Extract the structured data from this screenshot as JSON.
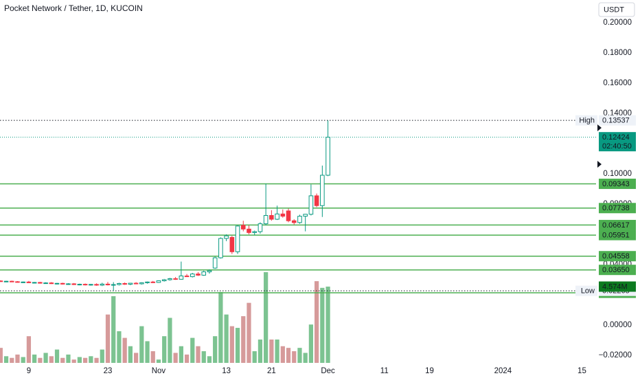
{
  "chart_data": {
    "type": "candlestick",
    "title": "Pocket Network / Tether, 1D, KUCOIN",
    "currency": "USDT",
    "up_color": "#089981",
    "down_color": "#f23645",
    "volume_up_color": "#7cc391",
    "volume_down_color": "#d69a9a",
    "level_color": "#4caf50",
    "grid": false,
    "xlim": [
      -5.1,
      100.5
    ],
    "ylim": [
      -0.025,
      0.215
    ],
    "xticks": [
      {
        "value": 0,
        "label": "9"
      },
      {
        "value": 14,
        "label": "23"
      },
      {
        "value": 23,
        "label": "Nov"
      },
      {
        "value": 35,
        "label": "13"
      },
      {
        "value": 43,
        "label": "21"
      },
      {
        "value": 53,
        "label": "Dec"
      },
      {
        "value": 63,
        "label": "11"
      },
      {
        "value": 71,
        "label": "19"
      },
      {
        "value": 84,
        "label": "2024"
      },
      {
        "value": 98,
        "label": "15"
      }
    ],
    "yticks": [
      {
        "value": 0.2,
        "label": "0.20000"
      },
      {
        "value": 0.18,
        "label": "0.18000"
      },
      {
        "value": 0.16,
        "label": "0.16000"
      },
      {
        "value": 0.14,
        "label": "0.14000"
      },
      {
        "value": 0.1,
        "label": "0.10000"
      },
      {
        "value": 0.08,
        "label": "0.08000"
      },
      {
        "value": 0.04,
        "label": "0.04000"
      },
      {
        "value": 0,
        "label": "0.00000"
      },
      {
        "value": -0.02,
        "label": "−0.02000"
      }
    ],
    "x": [
      -5,
      -4,
      -3,
      -2,
      -1,
      0,
      1,
      2,
      3,
      4,
      5,
      6,
      7,
      8,
      9,
      10,
      11,
      12,
      13,
      14,
      15,
      16,
      17,
      18,
      19,
      20,
      21,
      22,
      23,
      24,
      25,
      26,
      27,
      28,
      29,
      30,
      31,
      32,
      33,
      34,
      35,
      36,
      37,
      38,
      39,
      40,
      41,
      42,
      43,
      44,
      45,
      46,
      47,
      48,
      49,
      50,
      51,
      52,
      53
    ],
    "open": [
      0.0292,
      0.0289,
      0.029,
      0.0287,
      0.0283,
      0.0285,
      0.028,
      0.0282,
      0.0277,
      0.0279,
      0.0274,
      0.0276,
      0.0271,
      0.0273,
      0.0268,
      0.027,
      0.0266,
      0.0269,
      0.0264,
      0.0271,
      0.0266,
      0.0268,
      0.0275,
      0.027,
      0.0277,
      0.0273,
      0.028,
      0.0285,
      0.0282,
      0.0293,
      0.03,
      0.0307,
      0.0303,
      0.0325,
      0.032,
      0.0338,
      0.033,
      0.0352,
      0.0377,
      0.0445,
      0.0573,
      0.058,
      0.0485,
      0.066,
      0.0635,
      0.0612,
      0.0618,
      0.067,
      0.0725,
      0.07,
      0.0735,
      0.0755,
      0.069,
      0.0678,
      0.072,
      0.0733,
      0.0855,
      0.079,
      0.0991
    ],
    "high": [
      0.0296,
      0.0293,
      0.0294,
      0.0291,
      0.0288,
      0.0292,
      0.0285,
      0.0286,
      0.0283,
      0.0284,
      0.0279,
      0.028,
      0.0277,
      0.0278,
      0.0274,
      0.0275,
      0.0272,
      0.0276,
      0.028,
      0.0285,
      0.0284,
      0.028,
      0.0282,
      0.0279,
      0.0284,
      0.0283,
      0.0288,
      0.0292,
      0.0296,
      0.0305,
      0.0312,
      0.0318,
      0.042,
      0.0338,
      0.0345,
      0.035,
      0.036,
      0.0368,
      0.0452,
      0.058,
      0.06,
      0.059,
      0.066,
      0.069,
      0.066,
      0.0625,
      0.068,
      0.0936,
      0.076,
      0.079,
      0.0765,
      0.077,
      0.07,
      0.073,
      0.0735,
      0.093,
      0.087,
      0.1055,
      0.13537
    ],
    "low": [
      0.0286,
      0.0284,
      0.0285,
      0.0281,
      0.0279,
      0.0278,
      0.0276,
      0.0274,
      0.0273,
      0.0272,
      0.0269,
      0.0268,
      0.0266,
      0.0265,
      0.0263,
      0.0262,
      0.0261,
      0.026,
      0.0258,
      0.0262,
      0.02265,
      0.0262,
      0.0266,
      0.0264,
      0.027,
      0.0268,
      0.0274,
      0.0278,
      0.0279,
      0.0288,
      0.0294,
      0.0299,
      0.03,
      0.0318,
      0.0315,
      0.0325,
      0.0326,
      0.034,
      0.0372,
      0.044,
      0.0555,
      0.047,
      0.047,
      0.062,
      0.06,
      0.0595,
      0.0605,
      0.066,
      0.069,
      0.0695,
      0.071,
      0.068,
      0.0665,
      0.067,
      0.062,
      0.0725,
      0.078,
      0.0715,
      0.0985
    ],
    "close": [
      0.0289,
      0.029,
      0.0287,
      0.0283,
      0.0285,
      0.028,
      0.0282,
      0.0277,
      0.0279,
      0.0274,
      0.0276,
      0.0271,
      0.0273,
      0.0268,
      0.027,
      0.0266,
      0.0269,
      0.0264,
      0.0271,
      0.0266,
      0.0268,
      0.0275,
      0.027,
      0.0277,
      0.0273,
      0.028,
      0.0285,
      0.0282,
      0.0293,
      0.03,
      0.0307,
      0.0303,
      0.0325,
      0.032,
      0.0338,
      0.033,
      0.0352,
      0.036,
      0.0445,
      0.0573,
      0.059,
      0.0485,
      0.0655,
      0.0635,
      0.0612,
      0.0618,
      0.067,
      0.0725,
      0.07,
      0.0735,
      0.072,
      0.069,
      0.0678,
      0.072,
      0.0733,
      0.0855,
      0.079,
      0.0991,
      0.12424
    ],
    "volume": [
      900000,
      400000,
      300000,
      500000,
      350000,
      1600000,
      500000,
      300000,
      600000,
      400000,
      800000,
      300000,
      500000,
      200000,
      350000,
      300000,
      400000,
      300000,
      800000,
      2900000,
      4000000,
      1900000,
      1500000,
      1000000,
      600000,
      2200000,
      1300000,
      700000,
      200000,
      1600000,
      2700000,
      600000,
      1000000,
      500000,
      1500000,
      1000000,
      700000,
      400000,
      1600000,
      4250000,
      2900000,
      2200000,
      2100000,
      2800000,
      3600000,
      700000,
      1400000,
      5440000,
      1400000,
      1400000,
      1000000,
      900000,
      700000,
      900000,
      600000,
      2300000,
      4900000,
      4500000,
      4574000
    ],
    "volume_last_label": "4.574M",
    "levels": [
      0.09343,
      0.07738,
      0.06617,
      0.05951,
      0.04558,
      {
        "value": 0.0365,
        "label": "0.03650"
      },
      0.02136
    ],
    "high_marker": {
      "name": "High",
      "value": 0.13537
    },
    "low_marker": {
      "name": "Low",
      "value": 0.02265
    },
    "last_price": {
      "value": 0.12424,
      "countdown": "02:40:50"
    }
  }
}
